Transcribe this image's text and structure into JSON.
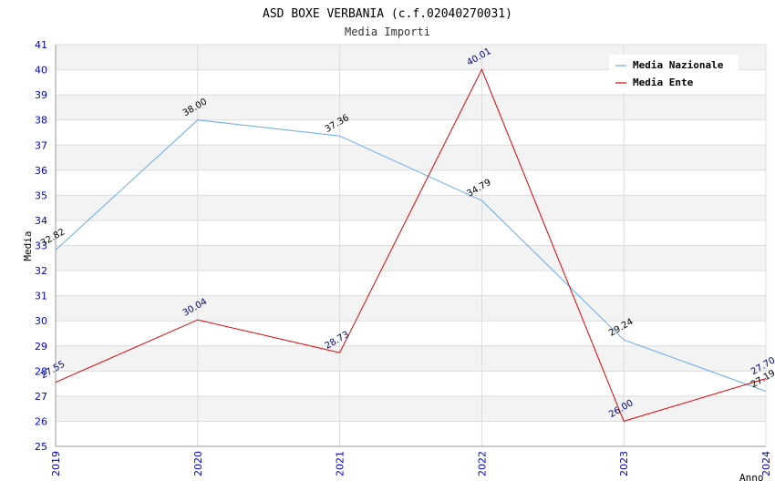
{
  "chart_data": {
    "type": "line",
    "title": "ASD BOXE VERBANIA (c.f.02040270031)",
    "subtitle": "Media Importi",
    "xlabel": "Anno",
    "ylabel": "Media",
    "x": [
      "2019",
      "2020",
      "2021",
      "2022",
      "2023",
      "2024"
    ],
    "ylim": [
      25,
      41
    ],
    "yticks": [
      "25",
      "26",
      "27",
      "28",
      "29",
      "30",
      "31",
      "32",
      "33",
      "34",
      "35",
      "36",
      "37",
      "38",
      "39",
      "40",
      "41"
    ],
    "grid": true,
    "legend_position": "top-right",
    "series": [
      {
        "name": "Media Nazionale",
        "color": "#66aaee",
        "label_color": "#000000",
        "values": [
          32.82,
          38.0,
          37.36,
          34.79,
          29.24,
          27.19
        ],
        "labels": [
          "32.82",
          "38.00",
          "37.36",
          "34.79",
          "29.24",
          "27.19"
        ]
      },
      {
        "name": "Media Ente",
        "color": "#dd0000",
        "label_color": "#000080",
        "values": [
          27.55,
          30.04,
          28.73,
          40.01,
          26.0,
          27.7
        ],
        "labels": [
          "27.55",
          "30.04",
          "28.73",
          "40.01",
          "26.00",
          "27.70"
        ]
      }
    ]
  }
}
